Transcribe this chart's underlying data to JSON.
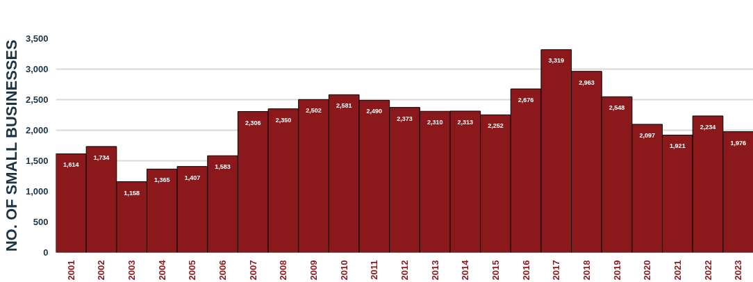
{
  "chart_data": {
    "type": "bar",
    "ylabel": "NO. OF SMALL BUSINESSES",
    "categories": [
      "2001",
      "2002",
      "2003",
      "2004",
      "2005",
      "2006",
      "2007",
      "2008",
      "2009",
      "2010",
      "2011",
      "2012",
      "2013",
      "2014",
      "2015",
      "2016",
      "2017",
      "2018",
      "2019",
      "2020",
      "2021",
      "2022",
      "2023"
    ],
    "values": [
      1614,
      1734,
      1158,
      1365,
      1407,
      1583,
      2306,
      2350,
      2502,
      2581,
      2490,
      2373,
      2310,
      2313,
      2252,
      2676,
      3319,
      2963,
      2548,
      2097,
      1921,
      2234,
      1976
    ],
    "color": "#8b191c",
    "ylim": [
      0,
      3500
    ],
    "yticks": [
      0,
      500,
      {
        "value": 1000,
        "label": "1,000"
      },
      {
        "value": 1500,
        "label": "1,500"
      },
      {
        "value": 2000,
        "label": "2,000"
      },
      {
        "value": 2500,
        "label": "2,500"
      },
      {
        "value": 3000,
        "label": "3,000"
      },
      {
        "value": 3500,
        "label": "3,500"
      }
    ],
    "value_labels": [
      "1,614",
      "1,734",
      "1,158",
      "1,365",
      "1,407",
      "1,583",
      "2,306",
      "2,350",
      "2,502",
      "2,581",
      "2,490",
      "2,373",
      "2,310",
      "2,313",
      "2,252",
      "2,676",
      "3,319",
      "2,963",
      "2,548",
      "2,097",
      "1,921",
      "2,234",
      "1,976"
    ],
    "grid": "y"
  }
}
